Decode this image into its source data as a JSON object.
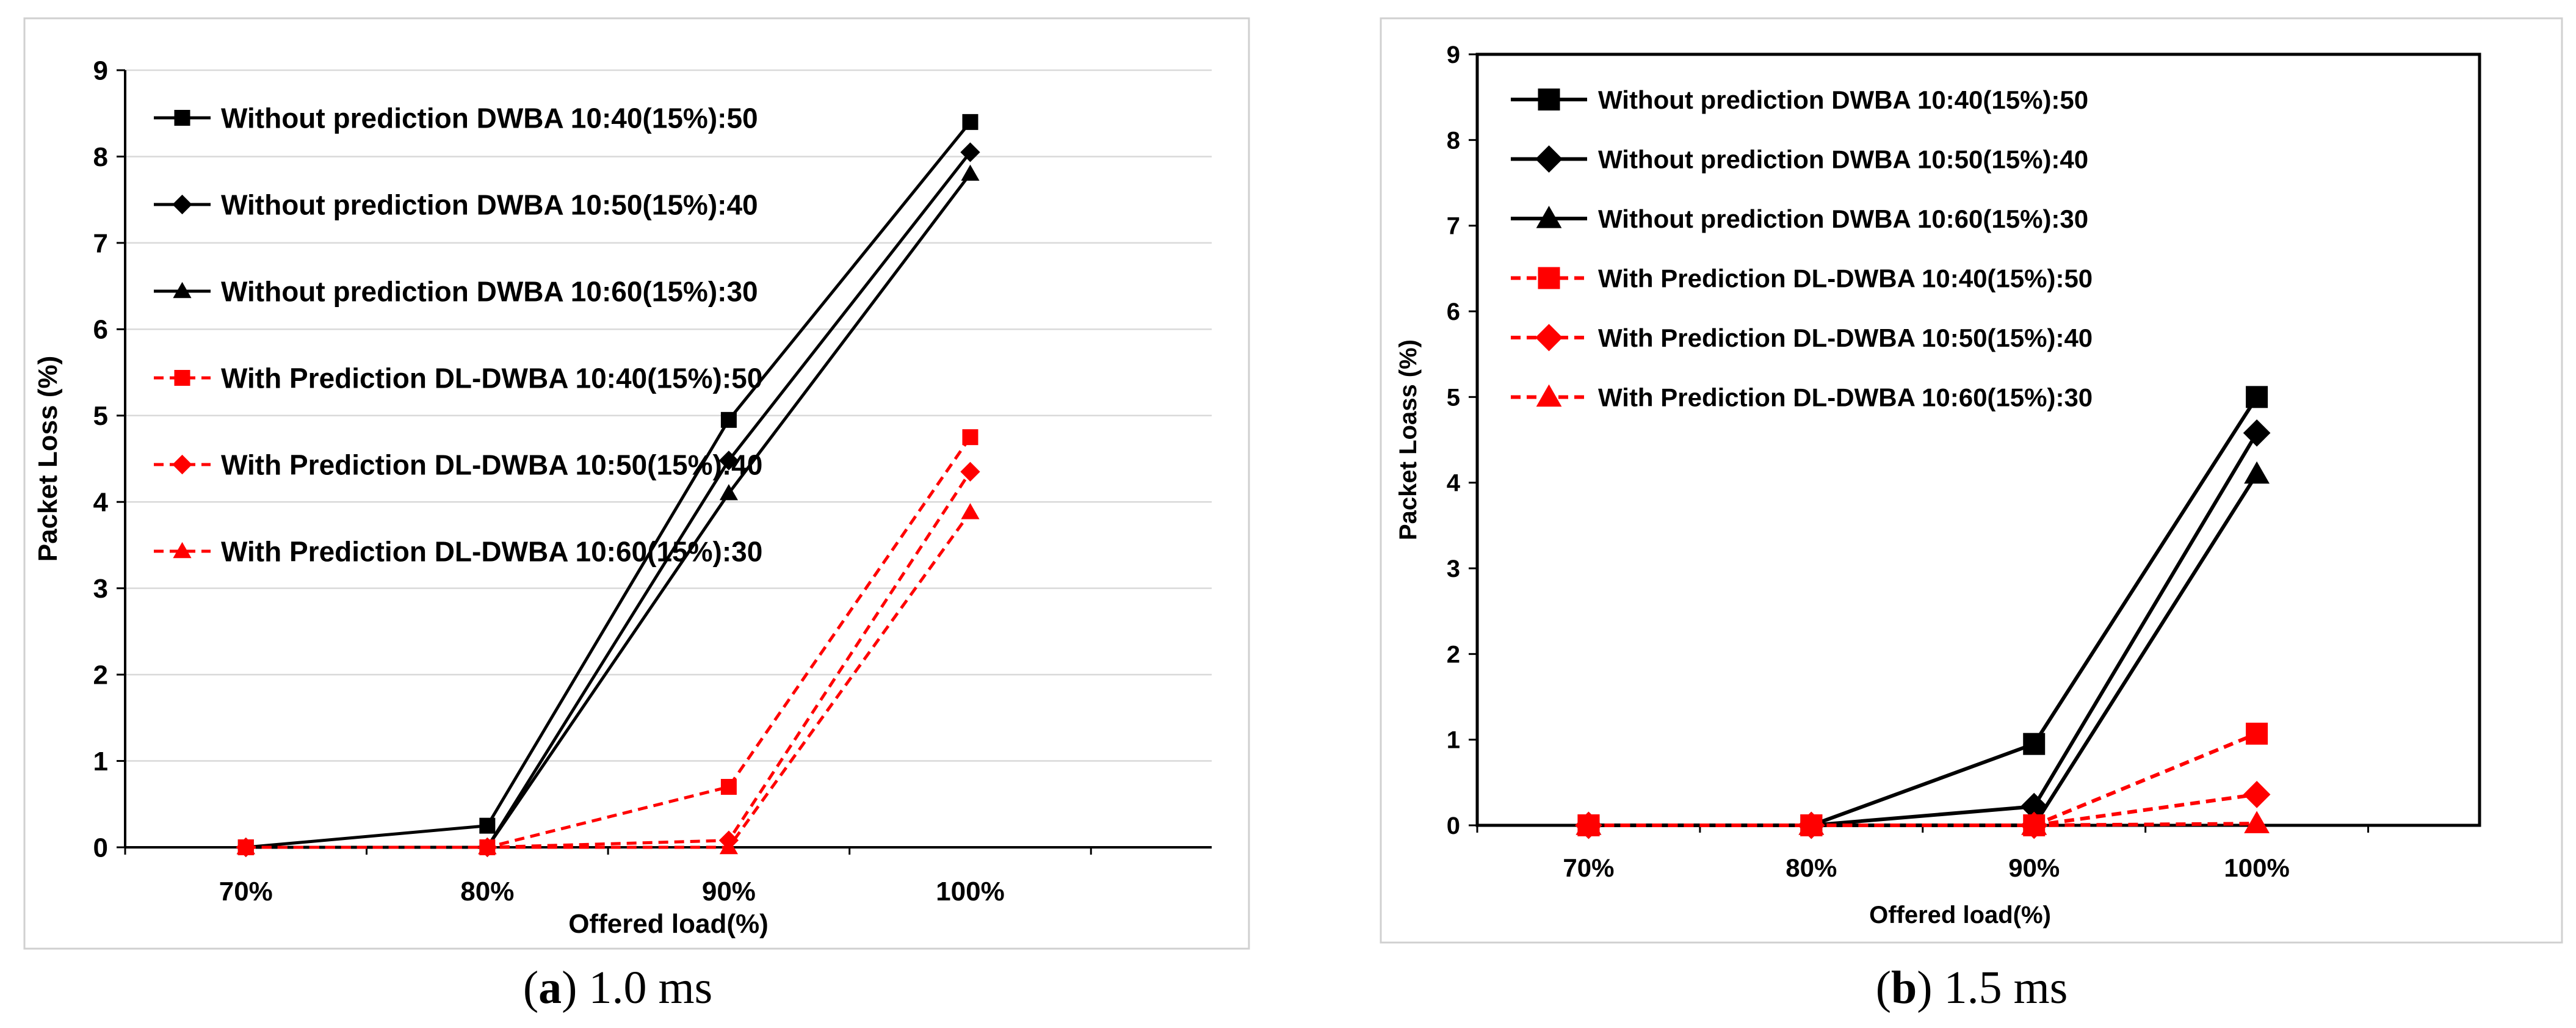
{
  "chart_data": [
    {
      "type": "line",
      "ylabel": "Packet Loss (%)",
      "xlabel": "Offered load(%)",
      "categories": [
        "70%",
        "80%",
        "90%",
        "100%"
      ],
      "ylim": [
        0,
        9
      ],
      "yticks": [
        "0",
        "1",
        "2",
        "3",
        "4",
        "5",
        "6",
        "7",
        "8",
        "9"
      ],
      "grid": true,
      "legend": "top-left",
      "caption_label": "a",
      "caption_text": "1.0 ms",
      "series": [
        {
          "name": "Without prediction DWBA 10:40(15%):50",
          "values": [
            0,
            0.25,
            4.95,
            8.4
          ],
          "color": "#000000",
          "dash": false,
          "marker": "square"
        },
        {
          "name": "Without prediction DWBA 10:50(15%):40",
          "values": [
            0,
            0,
            4.48,
            8.05
          ],
          "color": "#000000",
          "dash": false,
          "marker": "diamond"
        },
        {
          "name": "Without prediction DWBA 10:60(15%):30",
          "values": [
            0,
            0,
            4.1,
            7.8
          ],
          "color": "#000000",
          "dash": false,
          "marker": "triangle"
        },
        {
          "name": "With Prediction DL-DWBA 10:40(15%):50",
          "values": [
            0,
            0,
            0.7,
            4.75
          ],
          "color": "#ff0000",
          "dash": true,
          "marker": "square"
        },
        {
          "name": "With Prediction DL-DWBA 10:50(15%):40",
          "values": [
            0,
            0,
            0.08,
            4.35
          ],
          "color": "#ff0000",
          "dash": true,
          "marker": "diamond"
        },
        {
          "name": "With Prediction DL-DWBA 10:60(15%):30",
          "values": [
            0,
            0,
            0,
            3.88
          ],
          "color": "#ff0000",
          "dash": true,
          "marker": "triangle"
        }
      ]
    },
    {
      "type": "line",
      "ylabel": "Packet Loass (%)",
      "xlabel": "Offered load(%)",
      "categories": [
        "70%",
        "80%",
        "90%",
        "100%"
      ],
      "ylim": [
        0,
        9
      ],
      "yticks": [
        "0",
        "1",
        "2",
        "3",
        "4",
        "5",
        "6",
        "7",
        "8",
        "9"
      ],
      "grid": false,
      "legend": "top-left",
      "caption_label": "b",
      "caption_text": "1.5 ms",
      "series": [
        {
          "name": "Without prediction DWBA 10:40(15%):50",
          "values": [
            0,
            0,
            0.95,
            5.0
          ],
          "color": "#000000",
          "dash": false,
          "marker": "square"
        },
        {
          "name": "Without prediction DWBA 10:50(15%):40",
          "values": [
            0,
            0,
            0.22,
            4.58
          ],
          "color": "#000000",
          "dash": false,
          "marker": "diamond"
        },
        {
          "name": "Without prediction DWBA 10:60(15%):30",
          "values": [
            0,
            0,
            0,
            4.1
          ],
          "color": "#000000",
          "dash": false,
          "marker": "triangle"
        },
        {
          "name": "With Prediction DL-DWBA 10:40(15%):50",
          "values": [
            0,
            0,
            0,
            1.07
          ],
          "color": "#ff0000",
          "dash": true,
          "marker": "square"
        },
        {
          "name": "With Prediction DL-DWBA 10:50(15%):40",
          "values": [
            0,
            0,
            0,
            0.36
          ],
          "color": "#ff0000",
          "dash": true,
          "marker": "diamond"
        },
        {
          "name": "With Prediction DL-DWBA 10:60(15%):30",
          "values": [
            0,
            0,
            0,
            0.02
          ],
          "color": "#ff0000",
          "dash": true,
          "marker": "triangle"
        }
      ]
    }
  ]
}
